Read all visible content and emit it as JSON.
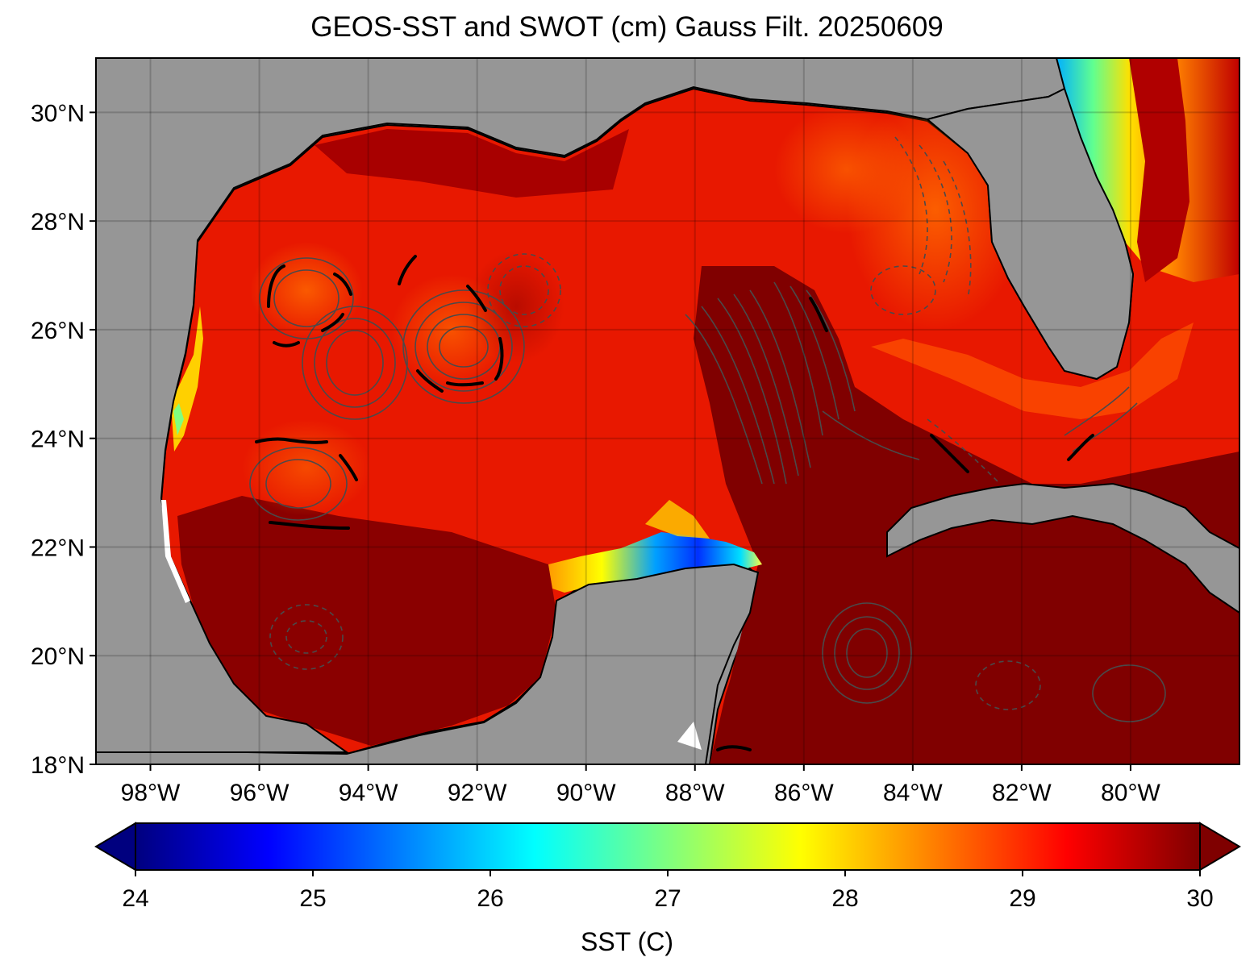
{
  "title": "GEOS-SST  and SWOT (cm) Gauss Filt. 20250609",
  "map": {
    "lon_range": [
      -99,
      -78.0
    ],
    "lat_range": [
      18,
      31
    ],
    "lat_ticks": [
      {
        "value": 30,
        "label": "30°N"
      },
      {
        "value": 28,
        "label": "28°N"
      },
      {
        "value": 26,
        "label": "26°N"
      },
      {
        "value": 24,
        "label": "24°N"
      },
      {
        "value": 22,
        "label": "22°N"
      },
      {
        "value": 20,
        "label": "20°N"
      },
      {
        "value": 18,
        "label": "18°N"
      }
    ],
    "lon_ticks": [
      {
        "value": -98,
        "label": "98°W"
      },
      {
        "value": -96,
        "label": "96°W"
      },
      {
        "value": -94,
        "label": "94°W"
      },
      {
        "value": -92,
        "label": "92°W"
      },
      {
        "value": -90,
        "label": "90°W"
      },
      {
        "value": -88,
        "label": "88°W"
      },
      {
        "value": -86,
        "label": "86°W"
      },
      {
        "value": -84,
        "label": "84°W"
      },
      {
        "value": -82,
        "label": "82°W"
      },
      {
        "value": -80,
        "label": "80°W"
      }
    ],
    "land_color": "#969696",
    "contour_color": "#4a4a4a",
    "zero_contour_color": "#000000",
    "cold_features": [
      {
        "name": "campeche-upwelling",
        "lon": -88.0,
        "lat": 21.8,
        "sst": 25.2
      },
      {
        "name": "florida-east-coast",
        "lon": -80.6,
        "lat": 28.5,
        "sst": 26.0
      }
    ]
  },
  "colorbar": {
    "label": "SST (C)",
    "min": 24,
    "max": 30,
    "extend": "both",
    "colormap": "jet",
    "ticks": [
      "24",
      "25",
      "26",
      "27",
      "28",
      "29",
      "30"
    ],
    "stops": [
      "#00007f",
      "#0000ff",
      "#007fff",
      "#00ffff",
      "#7fff7f",
      "#ffff00",
      "#ff7f00",
      "#ff0000",
      "#7f0000"
    ]
  }
}
